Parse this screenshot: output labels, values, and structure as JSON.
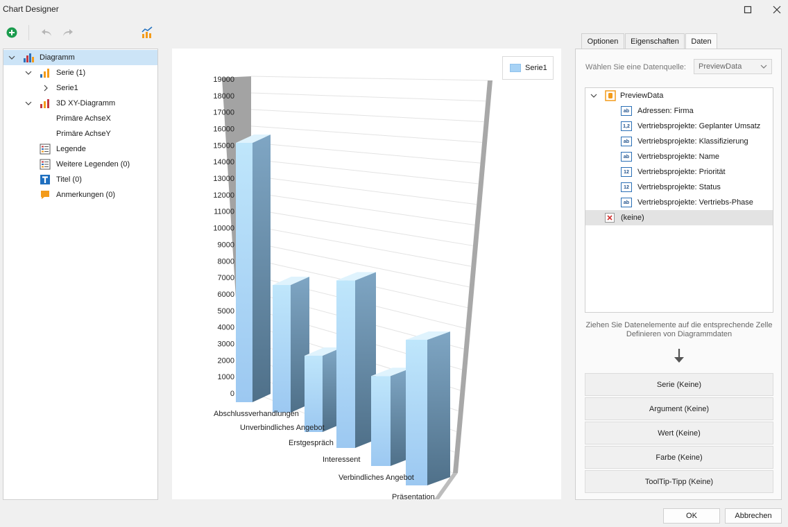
{
  "window": {
    "title": "Chart Designer"
  },
  "toolbar": {
    "add": "add-icon",
    "undo": "undo-icon",
    "redo": "redo-icon",
    "wizard": "chart-wizard-icon"
  },
  "tree": {
    "items": [
      {
        "label": "Diagramm",
        "icon": "chart-icon"
      },
      {
        "label": "Serie (1)",
        "icon": "series-icon"
      },
      {
        "label": "Serie1"
      },
      {
        "label": "3D XY-Diagramm",
        "icon": "diagram-3d-icon"
      },
      {
        "label": "Primäre AchseX"
      },
      {
        "label": "Primäre AchseY"
      },
      {
        "label": "Legende",
        "icon": "legend-icon"
      },
      {
        "label": "Weitere Legenden (0)",
        "icon": "legend-icon"
      },
      {
        "label": "Titel (0)",
        "icon": "title-icon"
      },
      {
        "label": "Anmerkungen (0)",
        "icon": "annotation-icon"
      }
    ]
  },
  "tabs": [
    "Optionen",
    "Eigenschaften",
    "Daten"
  ],
  "datasource": {
    "label": "Wählen Sie eine Datenquelle:",
    "selected": "PreviewData",
    "root": "PreviewData",
    "fields": [
      {
        "label": "Adressen: Firma",
        "type": "ab"
      },
      {
        "label": "Vertriebsprojekte: Geplanter Umsatz",
        "type": "1,2"
      },
      {
        "label": "Vertriebsprojekte: Klassifizierung",
        "type": "ab"
      },
      {
        "label": "Vertriebsprojekte: Name",
        "type": "ab"
      },
      {
        "label": "Vertriebsprojekte: Priorität",
        "type": "12"
      },
      {
        "label": "Vertriebsprojekte: Status",
        "type": "12"
      },
      {
        "label": "Vertriebsprojekte: Vertriebs-Phase",
        "type": "ab"
      }
    ],
    "none": "(keine)"
  },
  "hint": {
    "line1": "Ziehen Sie Datenelemente auf die entsprechende Zelle",
    "line2": "Definieren von Diagrammdaten"
  },
  "drop_targets": [
    "Serie (Keine)",
    "Argument (Keine)",
    "Wert (Keine)",
    "Farbe (Keine)",
    "ToolTip-Tipp (Keine)"
  ],
  "dialog": {
    "ok": "OK",
    "cancel": "Abbrechen"
  },
  "chart_data": {
    "type": "bar",
    "title": "",
    "legend": {
      "entries": [
        "Serie1"
      ],
      "placement": "top-right"
    },
    "yticks": [
      0,
      1000,
      2000,
      3000,
      4000,
      5000,
      6000,
      7000,
      8000,
      9000,
      10000,
      11000,
      12000,
      13000,
      14000,
      15000,
      16000,
      17000,
      18000,
      19000
    ],
    "ylim": [
      0,
      19000
    ],
    "categories": [
      "Abschlussverhandlungen",
      "Unverbindliches Angebot",
      "Erstgespräch",
      "Interessent",
      "Verbindliches Angebot",
      "Präsentation"
    ],
    "series": [
      {
        "name": "Serie1",
        "values": [
          17000,
          8000,
          4700,
          10600,
          5500,
          8400
        ]
      }
    ],
    "colors": {
      "bar_top": "#dff3fd",
      "bar_front": "#a7d2f5",
      "bar_side": "#5d7e99"
    }
  }
}
